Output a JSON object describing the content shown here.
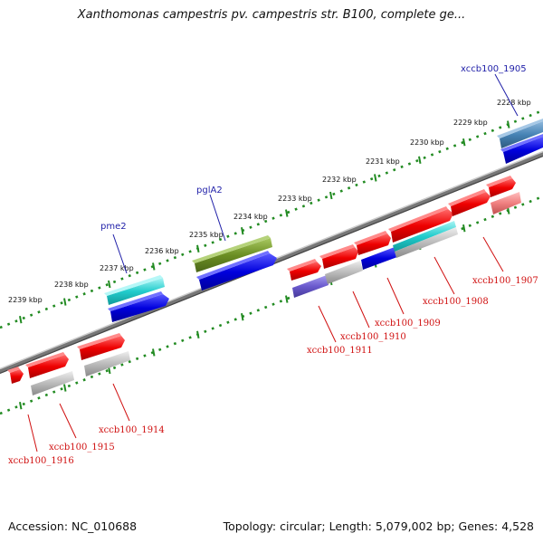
{
  "title": "Xanthomonas campestris pv. campestris str. B100, complete ge...",
  "footer": {
    "accession": "Accession: NC_010688",
    "summary": "Topology: circular; Length: 5,079,002 bp; Genes: 4,528"
  },
  "kbp_labels": [
    "2239 kbp",
    "2238 kbp",
    "2237 kbp",
    "2236 kbp",
    "2235 kbp",
    "2234 kbp",
    "2233 kbp",
    "2232 kbp",
    "2231 kbp",
    "2230 kbp",
    "2229 kbp",
    "2228 kbp"
  ],
  "gene_labels_top": [
    "pme2",
    "pglA2",
    "xccb100_1905"
  ],
  "gene_labels_bottom": [
    "xccb100_1907",
    "xccb100_1908",
    "xccb100_1909",
    "xccb100_1910",
    "xccb100_1911",
    "xccb100_1914",
    "xccb100_1915",
    "xccb100_1916"
  ],
  "colors": {
    "cds_red": "#ee0000",
    "cds_blue": "#0000dd",
    "cds_cyan": "#22cccc",
    "cds_gray": "#bbbbbb",
    "cds_olive": "#6b8e23",
    "cds_purple": "#6a5acd",
    "cds_steel": "#4682b4",
    "cds_pink": "#f08080",
    "ticks": "#228b22",
    "label_blue": "#1f1fa8",
    "label_red": "#d01010"
  }
}
